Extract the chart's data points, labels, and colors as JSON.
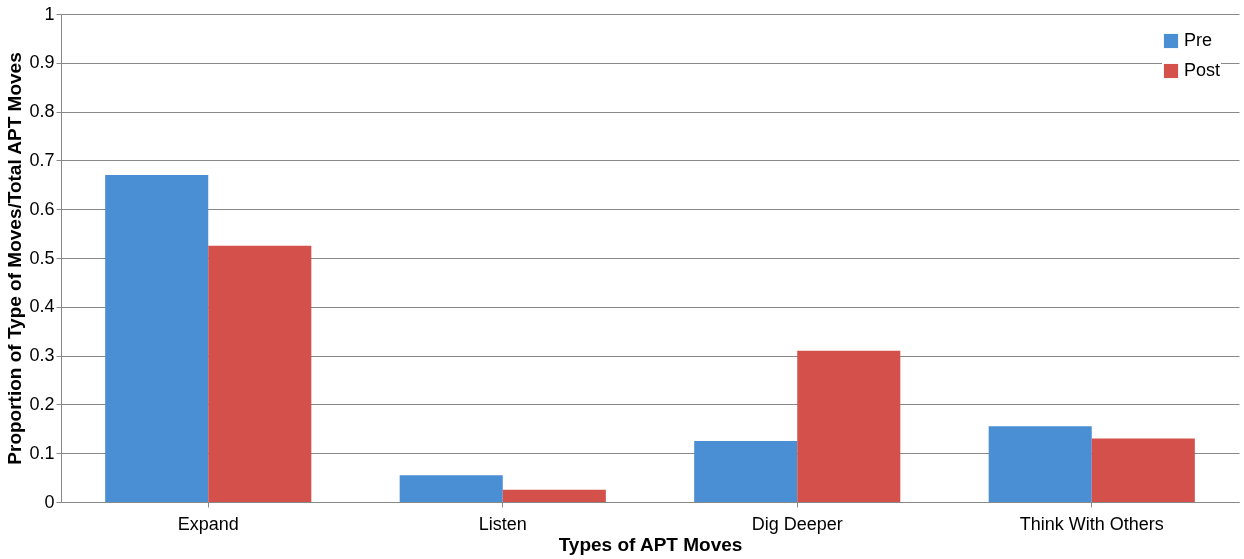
{
  "chart_data": {
    "type": "bar",
    "xlabel": "Types of APT Moves",
    "ylabel": "Proportion of Type of Moves/Total APT Moves",
    "categories": [
      "Expand",
      "Listen",
      "Dig Deeper",
      "Think With Others"
    ],
    "series": [
      {
        "name": "Pre",
        "color": "#4a8ed4",
        "values": [
          0.67,
          0.055,
          0.125,
          0.155
        ]
      },
      {
        "name": "Post",
        "color": "#d4504a",
        "values": [
          0.525,
          0.025,
          0.31,
          0.13
        ]
      }
    ],
    "ylim": [
      0,
      1
    ],
    "yticks": [
      0,
      0.1,
      0.2,
      0.3,
      0.4,
      0.5,
      0.6,
      0.7,
      0.8,
      0.9,
      1
    ],
    "grid": "y",
    "legend": "top right"
  }
}
